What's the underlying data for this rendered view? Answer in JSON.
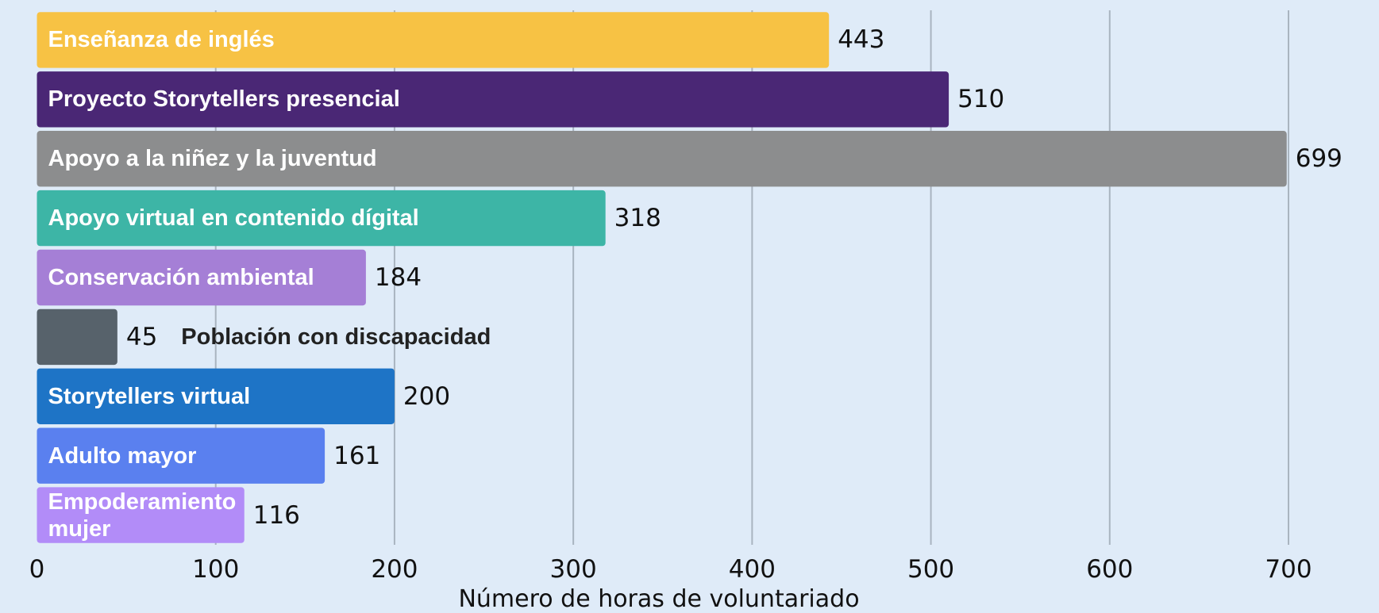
{
  "chart_data": {
    "type": "barh",
    "categories": [
      "Enseñanza de inglés",
      "Proyecto Storytellers presencial",
      "Apoyo a la niñez y la juventud",
      "Apoyo virtual en contenido dígital",
      "Conservación ambiental",
      "Población con discapacidad",
      "Storytellers virtual",
      "Adulto mayor",
      "Empoderamiento mujer"
    ],
    "values": [
      443,
      510,
      699,
      318,
      184,
      45,
      200,
      161,
      116
    ],
    "colors": [
      "#f7c244",
      "#4a2775",
      "#8c8d8e",
      "#3db5a6",
      "#a57fd6",
      "#57626b",
      "#1e74c6",
      "#5a80ef",
      "#b28cf8"
    ],
    "xlim": [
      0,
      700
    ],
    "xticks": [
      0,
      100,
      200,
      300,
      400,
      500,
      600,
      700
    ],
    "grid": true,
    "xlabel": "Número de horas de voluntariado"
  }
}
